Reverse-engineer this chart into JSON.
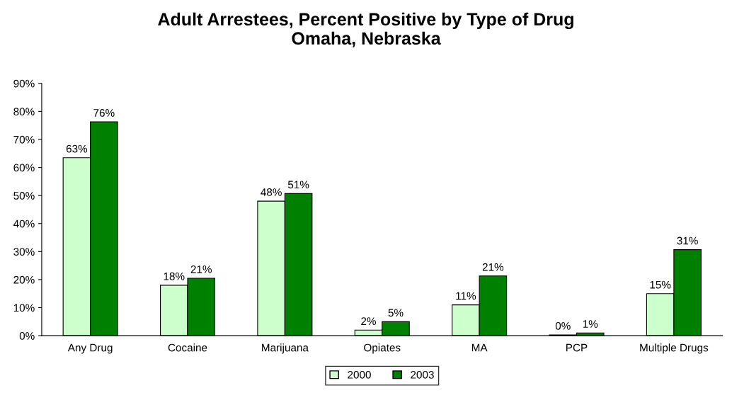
{
  "chart_data": {
    "type": "bar",
    "title": "Adult Arrestees, Percent Positive by Type of Drug\nOmaha, Nebraska",
    "categories": [
      "Any Drug",
      "Cocaine",
      "Marijuana",
      "Opiates",
      "MA",
      "PCP",
      "Multiple Drugs"
    ],
    "series": [
      {
        "name": "2000",
        "color": "#ccffcc",
        "values": [
          63.5,
          18,
          48,
          2,
          11,
          0.3,
          15
        ],
        "value_labels": [
          "63%",
          "18%",
          "48%",
          "2%",
          "11%",
          "0%",
          "15%"
        ]
      },
      {
        "name": "2003",
        "color": "#008000",
        "values": [
          76.3,
          20.5,
          50.7,
          5,
          21.3,
          1,
          30.7
        ],
        "value_labels": [
          "76%",
          "21%",
          "51%",
          "5%",
          "21%",
          "1%",
          "31%"
        ]
      }
    ],
    "ylim": [
      0,
      90
    ],
    "yticks": [
      {
        "value": 0,
        "label": "0%"
      },
      {
        "value": 10,
        "label": "10%"
      },
      {
        "value": 20,
        "label": "20%"
      },
      {
        "value": 30,
        "label": "30%"
      },
      {
        "value": 40,
        "label": "40%"
      },
      {
        "value": 50,
        "label": "50%"
      },
      {
        "value": 60,
        "label": "60%"
      },
      {
        "value": 70,
        "label": "70%"
      },
      {
        "value": 80,
        "label": "80%"
      },
      {
        "value": 90,
        "label": "90%"
      }
    ],
    "legend": "bottom",
    "grid": false
  }
}
